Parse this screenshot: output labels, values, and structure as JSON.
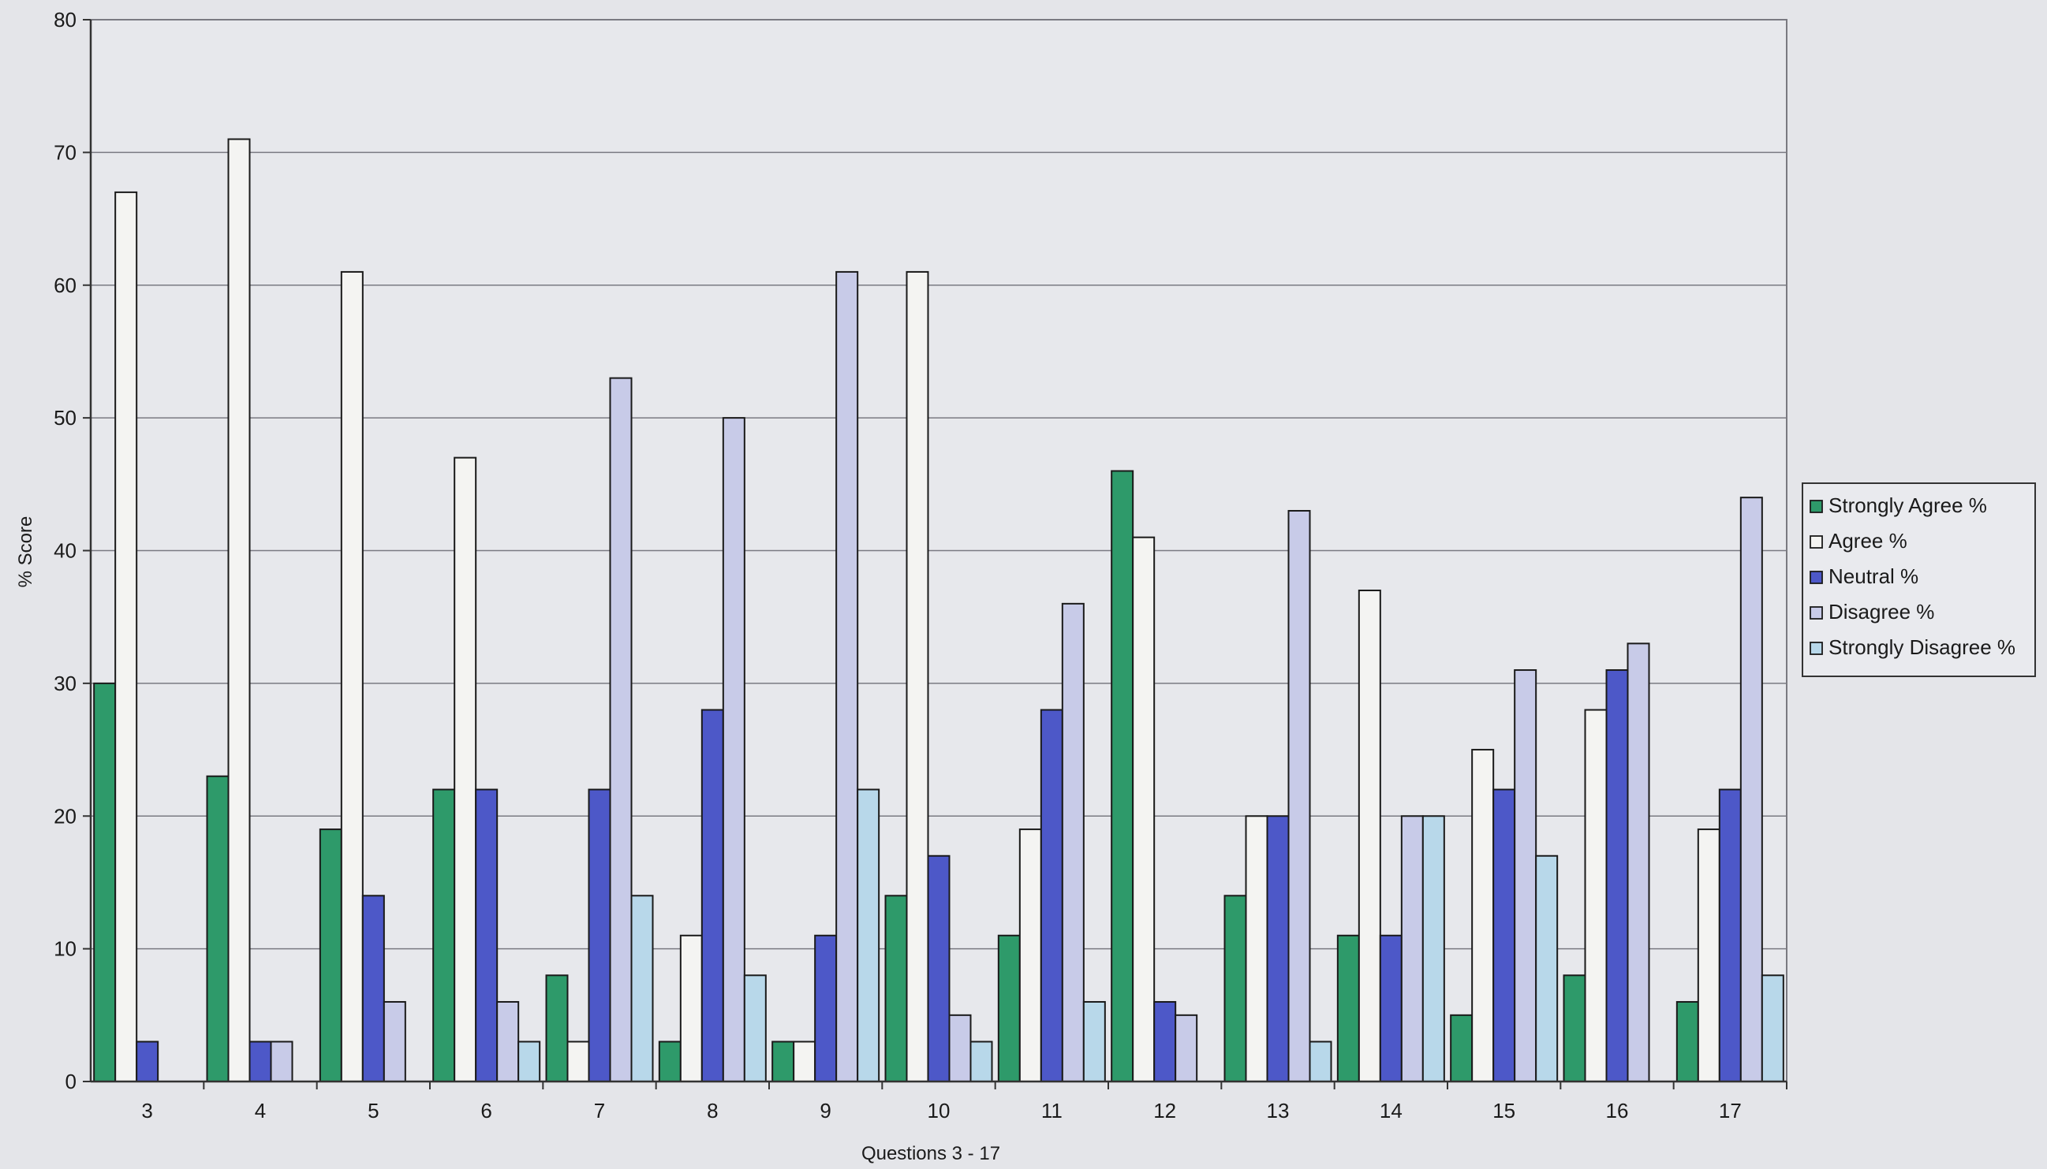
{
  "chart_data": {
    "type": "bar",
    "title": "",
    "xlabel": "Questions 3 - 17",
    "ylabel": "% Score",
    "ylim": [
      0,
      80
    ],
    "yticks": [
      "0",
      "10",
      "20",
      "30",
      "40",
      "50",
      "60",
      "70",
      "80"
    ],
    "grid": true,
    "legend_position": "right",
    "categories": [
      "3",
      "4",
      "5",
      "6",
      "7",
      "8",
      "9",
      "10",
      "11",
      "12",
      "13",
      "14",
      "15",
      "16",
      "17"
    ],
    "series": [
      {
        "name": "Strongly Agree %",
        "color": "#2e9a6a",
        "values": [
          30,
          23,
          19,
          22,
          8,
          3,
          3,
          14,
          11,
          46,
          14,
          11,
          5,
          8,
          6
        ]
      },
      {
        "name": "Agree %",
        "color": "#f4f4f2",
        "values": [
          67,
          71,
          61,
          47,
          3,
          11,
          3,
          61,
          19,
          41,
          20,
          37,
          25,
          28,
          19
        ]
      },
      {
        "name": "Neutral %",
        "color": "#4d58c8",
        "values": [
          3,
          3,
          14,
          22,
          22,
          28,
          11,
          17,
          28,
          6,
          20,
          11,
          22,
          31,
          22
        ]
      },
      {
        "name": "Disagree %",
        "color": "#c8cbe8",
        "values": [
          0,
          3,
          6,
          6,
          53,
          50,
          61,
          5,
          36,
          5,
          43,
          20,
          31,
          33,
          44
        ]
      },
      {
        "name": "Strongly Disagree %",
        "color": "#b8d8ea",
        "values": [
          0,
          0,
          0,
          3,
          14,
          8,
          22,
          3,
          6,
          0,
          3,
          20,
          17,
          0,
          8
        ]
      }
    ]
  }
}
